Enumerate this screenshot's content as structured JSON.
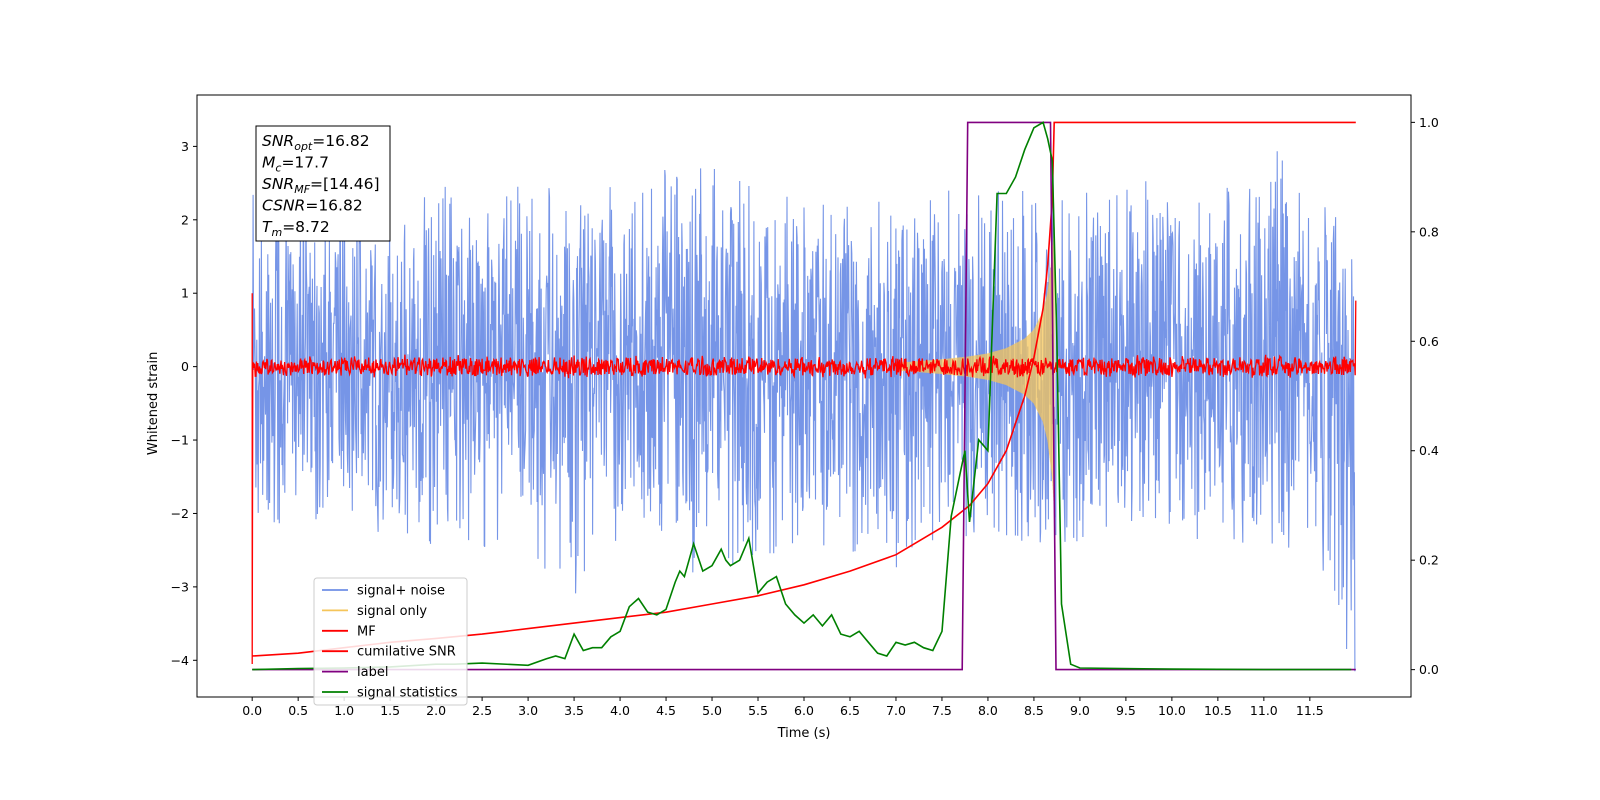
{
  "chart_data": {
    "type": "line",
    "xlabel": "Time (s)",
    "ylabel_left": "Whitened strain",
    "ylabel_right": "",
    "xlim": [
      -0.6,
      12.6
    ],
    "ylim_left": [
      -4.5,
      3.7
    ],
    "ylim_right": [
      -0.05,
      1.05
    ],
    "x_ticks": [
      0.0,
      0.5,
      1.0,
      1.5,
      2.0,
      2.5,
      3.0,
      3.5,
      4.0,
      4.5,
      5.0,
      5.5,
      6.0,
      6.5,
      7.0,
      7.5,
      8.0,
      8.5,
      9.0,
      9.5,
      10.0,
      10.5,
      11.0,
      11.5
    ],
    "x_tick_labels": [
      "0.0",
      "0.5",
      "1.0",
      "1.5",
      "2.0",
      "2.5",
      "3.0",
      "3.5",
      "4.0",
      "4.5",
      "5.0",
      "5.5",
      "6.0",
      "6.5",
      "7.0",
      "7.5",
      "8.0",
      "8.5",
      "9.0",
      "9.5",
      "10.0",
      "10.5",
      "11.0",
      "11.5"
    ],
    "y_ticks_left": [
      -4,
      -3,
      -2,
      -1,
      0,
      1,
      2,
      3
    ],
    "y_tick_labels_left": [
      "−4",
      "−3",
      "−2",
      "−1",
      "0",
      "1",
      "2",
      "3"
    ],
    "y_ticks_right": [
      0.0,
      0.2,
      0.4,
      0.6,
      0.8,
      1.0
    ],
    "y_tick_labels_right": [
      "0.0",
      "0.2",
      "0.4",
      "0.6",
      "0.8",
      "1.0"
    ],
    "grid": false,
    "legend_position": "bottom-left",
    "annotation": {
      "position": "top-left",
      "lines": [
        {
          "base": "SNR",
          "sub": "opt",
          "value": "=16.82"
        },
        {
          "base": "M",
          "sub": "c",
          "value": "=17.7"
        },
        {
          "base": "SNR",
          "sub": "MF",
          "value": "=[14.46]"
        },
        {
          "base": "CSNR",
          "sub": "",
          "value": "=16.82"
        },
        {
          "base": "T",
          "sub": "m",
          "value": "=8.72"
        }
      ]
    },
    "series": [
      {
        "name": "signal+ noise",
        "axis": "left",
        "color": "#6f8fe6",
        "description_values": {
          "x_range": [
            0.0,
            11.99
          ],
          "typical_amplitude": 1.0,
          "min": -4.15,
          "max": 3.3
        },
        "x": [
          0.0,
          0.5,
          1.0,
          1.5,
          2.0,
          2.5,
          3.0,
          3.5,
          4.0,
          4.5,
          5.0,
          5.5,
          6.0,
          6.5,
          7.0,
          7.5,
          8.0,
          8.5,
          9.0,
          9.5,
          10.0,
          10.5,
          11.0,
          11.5,
          11.99
        ],
        "y_upper": [
          2.7,
          2.4,
          2.5,
          2.3,
          2.6,
          2.2,
          2.6,
          2.3,
          2.5,
          2.9,
          2.9,
          2.5,
          2.4,
          2.3,
          2.4,
          2.4,
          2.4,
          2.9,
          2.4,
          2.5,
          2.6,
          2.4,
          3.3,
          2.4,
          1.8
        ],
        "y_lower": [
          -2.1,
          -2.2,
          -2.2,
          -2.3,
          -2.5,
          -2.6,
          -2.5,
          -3.2,
          -2.4,
          -2.6,
          -3.0,
          -2.6,
          -2.5,
          -2.6,
          -2.8,
          -2.4,
          -2.3,
          -2.4,
          -2.4,
          -2.3,
          -2.3,
          -2.5,
          -2.5,
          -2.6,
          -4.15
        ]
      },
      {
        "name": "signal only",
        "axis": "left",
        "color": "#f5c55a",
        "x": [
          7.0,
          7.5,
          7.8,
          8.0,
          8.2,
          8.4,
          8.5,
          8.6,
          8.65,
          8.7,
          8.72
        ],
        "envelope": [
          0.05,
          0.1,
          0.14,
          0.18,
          0.25,
          0.38,
          0.5,
          0.75,
          1.0,
          1.5,
          1.9
        ]
      },
      {
        "name": "MF",
        "axis": "left",
        "color": "#ff0000",
        "x": [
          0.0,
          0.05,
          11.95,
          12.0
        ],
        "y": [
          1.0,
          0.05,
          0.05,
          0.9
        ],
        "noise_amplitude": 0.12
      },
      {
        "name": "cumilative SNR",
        "axis": "right",
        "color": "#ff0000",
        "x": [
          0.0,
          0.5,
          1.0,
          1.5,
          2.0,
          2.5,
          3.0,
          3.5,
          4.0,
          4.5,
          5.0,
          5.5,
          6.0,
          6.5,
          7.0,
          7.5,
          7.8,
          8.0,
          8.2,
          8.4,
          8.5,
          8.6,
          8.65,
          8.7,
          8.72,
          12.0
        ],
        "y": [
          0.025,
          0.03,
          0.04,
          0.05,
          0.057,
          0.065,
          0.075,
          0.085,
          0.095,
          0.105,
          0.12,
          0.135,
          0.155,
          0.18,
          0.21,
          0.26,
          0.3,
          0.34,
          0.4,
          0.5,
          0.57,
          0.66,
          0.74,
          0.86,
          1.0,
          1.0
        ]
      },
      {
        "name": "label",
        "axis": "right",
        "color": "#800080",
        "x": [
          0.0,
          7.72,
          7.78,
          8.68,
          8.74,
          12.0
        ],
        "y": [
          0.0,
          0.0,
          1.0,
          1.0,
          0.0,
          0.0
        ]
      },
      {
        "name": "signal statistics",
        "axis": "right",
        "color": "#008000",
        "x": [
          0.0,
          0.5,
          1.0,
          1.5,
          2.0,
          2.2,
          2.5,
          3.0,
          3.2,
          3.3,
          3.4,
          3.5,
          3.6,
          3.7,
          3.8,
          3.9,
          4.0,
          4.1,
          4.2,
          4.3,
          4.4,
          4.5,
          4.6,
          4.65,
          4.7,
          4.8,
          4.9,
          5.0,
          5.1,
          5.15,
          5.2,
          5.3,
          5.4,
          5.5,
          5.6,
          5.7,
          5.8,
          5.9,
          6.0,
          6.1,
          6.2,
          6.3,
          6.4,
          6.5,
          6.6,
          6.7,
          6.8,
          6.9,
          7.0,
          7.1,
          7.2,
          7.3,
          7.4,
          7.5,
          7.6,
          7.7,
          7.75,
          7.8,
          7.9,
          8.0,
          8.1,
          8.2,
          8.3,
          8.4,
          8.5,
          8.6,
          8.65,
          8.7,
          8.75,
          8.8,
          8.9,
          9.0,
          10.0,
          11.0,
          11.95
        ],
        "y": [
          0.0,
          0.002,
          0.003,
          0.005,
          0.01,
          0.01,
          0.012,
          0.008,
          0.02,
          0.025,
          0.02,
          0.065,
          0.035,
          0.04,
          0.04,
          0.06,
          0.07,
          0.115,
          0.13,
          0.105,
          0.1,
          0.11,
          0.16,
          0.18,
          0.17,
          0.23,
          0.18,
          0.19,
          0.22,
          0.2,
          0.19,
          0.2,
          0.24,
          0.14,
          0.16,
          0.17,
          0.12,
          0.1,
          0.085,
          0.1,
          0.08,
          0.1,
          0.065,
          0.06,
          0.07,
          0.05,
          0.03,
          0.025,
          0.05,
          0.045,
          0.05,
          0.04,
          0.035,
          0.07,
          0.28,
          0.36,
          0.4,
          0.27,
          0.42,
          0.4,
          0.87,
          0.87,
          0.9,
          0.95,
          0.99,
          1.0,
          0.97,
          0.93,
          0.6,
          0.12,
          0.01,
          0.003,
          0.001,
          0.0,
          0.0
        ]
      }
    ]
  },
  "legend": {
    "items": [
      {
        "label": "signal+ noise",
        "color": "#6f8fe6"
      },
      {
        "label": "signal only",
        "color": "#f5c55a"
      },
      {
        "label": "MF",
        "color": "#ff0000"
      },
      {
        "label": "cumilative SNR",
        "color": "#ff0000"
      },
      {
        "label": "label",
        "color": "#800080"
      },
      {
        "label": "signal statistics",
        "color": "#008000"
      }
    ]
  }
}
